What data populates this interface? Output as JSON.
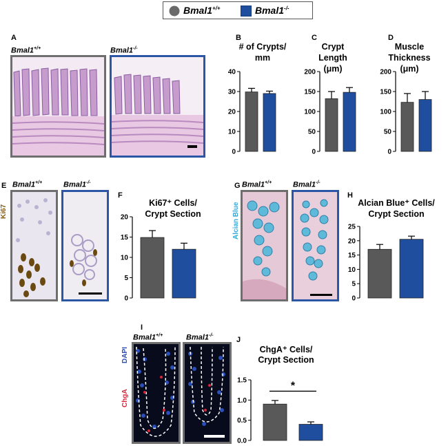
{
  "legend": {
    "wt_label": "Bmal1",
    "wt_sup": "+/+",
    "ko_label": "Bmal1",
    "ko_sup": "-/-",
    "wt_color": "#595959",
    "ko_color": "#1f4e9e"
  },
  "panels": {
    "A": "A",
    "B": "B",
    "C": "C",
    "D": "D",
    "E": "E",
    "F": "F",
    "G": "G",
    "H": "H",
    "I": "I",
    "J": "J"
  },
  "genotypes": {
    "wt": "Bmal1",
    "wt_sup": "+/+",
    "ko": "Bmal1",
    "ko_sup": "-/-"
  },
  "stain_labels": {
    "ki67": "Ki67",
    "alcian": "Alcian Blue",
    "dapi": "DAPI",
    "chga": "ChgA"
  },
  "chart_data": [
    {
      "id": "B",
      "type": "bar",
      "title": "# of Crypts/ mm",
      "categories": [
        "Bmal1+/+",
        "Bmal1-/-"
      ],
      "values": [
        29.8,
        29.0
      ],
      "errors": [
        1.8,
        1.2
      ],
      "ylim": [
        0,
        40
      ],
      "yticks": [
        "0",
        "10",
        "20",
        "30",
        "40"
      ]
    },
    {
      "id": "C",
      "type": "bar",
      "title": "Crypt Length (μm)",
      "categories": [
        "Bmal1+/+",
        "Bmal1-/-"
      ],
      "values": [
        132,
        148
      ],
      "errors": [
        18,
        12
      ],
      "ylim": [
        0,
        200
      ],
      "yticks": [
        "0",
        "50",
        "100",
        "150",
        "200"
      ]
    },
    {
      "id": "D",
      "type": "bar",
      "title": "Muscle Thickness (μm)",
      "categories": [
        "Bmal1+/+",
        "Bmal1-/-"
      ],
      "values": [
        123,
        130
      ],
      "errors": [
        22,
        20
      ],
      "ylim": [
        0,
        200
      ],
      "yticks": [
        "0",
        "50",
        "100",
        "150",
        "200"
      ]
    },
    {
      "id": "F",
      "type": "bar",
      "title": "Ki67+ Cells/ Crypt Section",
      "categories": [
        "Bmal1+/+",
        "Bmal1-/-"
      ],
      "values": [
        14.9,
        12.0
      ],
      "errors": [
        1.7,
        1.5
      ],
      "ylim": [
        0,
        20
      ],
      "yticks": [
        "0",
        "5",
        "10",
        "15",
        "20"
      ]
    },
    {
      "id": "H",
      "type": "bar",
      "title": "Alcian Blue+ Cells/ Crypt Section",
      "categories": [
        "Bmal1+/+",
        "Bmal1-/-"
      ],
      "values": [
        17.0,
        20.5
      ],
      "errors": [
        1.7,
        1.1
      ],
      "ylim": [
        0,
        25
      ],
      "yticks": [
        "0",
        "5",
        "10",
        "15",
        "20",
        "25"
      ]
    },
    {
      "id": "J",
      "type": "bar",
      "title": "ChgA+ Cells/ Crypt Section",
      "categories": [
        "Bmal1+/+",
        "Bmal1-/-"
      ],
      "values": [
        0.9,
        0.4
      ],
      "errors": [
        0.09,
        0.06
      ],
      "ylim": [
        0,
        1.5
      ],
      "yticks": [
        "0.0",
        "0.5",
        "1.0",
        "1.5"
      ],
      "significance": "*"
    }
  ]
}
